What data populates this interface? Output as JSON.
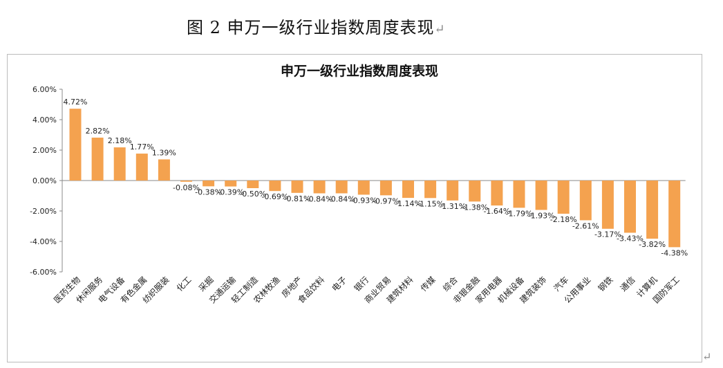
{
  "figure_title": "图 2  申万一级行业指数周度表现",
  "return_mark": "↵",
  "chart_data": {
    "type": "bar",
    "title": "申万一级行业指数周度表现",
    "xlabel": "",
    "ylabel": "",
    "ylim": [
      -6,
      6
    ],
    "yticks": [
      "6.00%",
      "4.00%",
      "2.00%",
      "0.00%",
      "-2.00%",
      "-4.00%",
      "-6.00%"
    ],
    "grid": false,
    "bar_color": "#F4A24F",
    "categories": [
      "医药生物",
      "休闲服务",
      "电气设备",
      "有色金属",
      "纺织服装",
      "化工",
      "采掘",
      "交通运输",
      "轻工制造",
      "农林牧渔",
      "房地产",
      "食品饮料",
      "电子",
      "银行",
      "商业贸易",
      "建筑材料",
      "传媒",
      "综合",
      "非银金融",
      "家用电器",
      "机械设备",
      "建筑装饰",
      "汽车",
      "公用事业",
      "钢铁",
      "通信",
      "计算机",
      "国防军工"
    ],
    "values": [
      4.72,
      2.82,
      2.18,
      1.77,
      1.39,
      -0.08,
      -0.38,
      -0.39,
      -0.5,
      -0.69,
      -0.81,
      -0.84,
      -0.84,
      -0.93,
      -0.97,
      -1.14,
      -1.15,
      -1.31,
      -1.38,
      -1.64,
      -1.79,
      -1.93,
      -2.18,
      -2.61,
      -3.17,
      -3.43,
      -3.82,
      -4.38
    ],
    "data_labels": [
      "4.72%",
      "2.82%",
      "2.18%",
      "1.77%",
      "1.39%",
      "-0.08%",
      "-0.38%",
      "-0.39%",
      "-0.50%",
      "-0.69%",
      "-0.81%",
      "-0.84%",
      "-0.84%",
      "-0.93%",
      "-0.97%",
      "-1.14%",
      "-1.15%",
      "-1.31%",
      "-1.38%",
      "-1.64%",
      "-1.79%",
      "-1.93%",
      "-2.18%",
      "-2.61%",
      "-3.17%",
      "-3.43%",
      "-3.82%",
      "-4.38%"
    ]
  }
}
